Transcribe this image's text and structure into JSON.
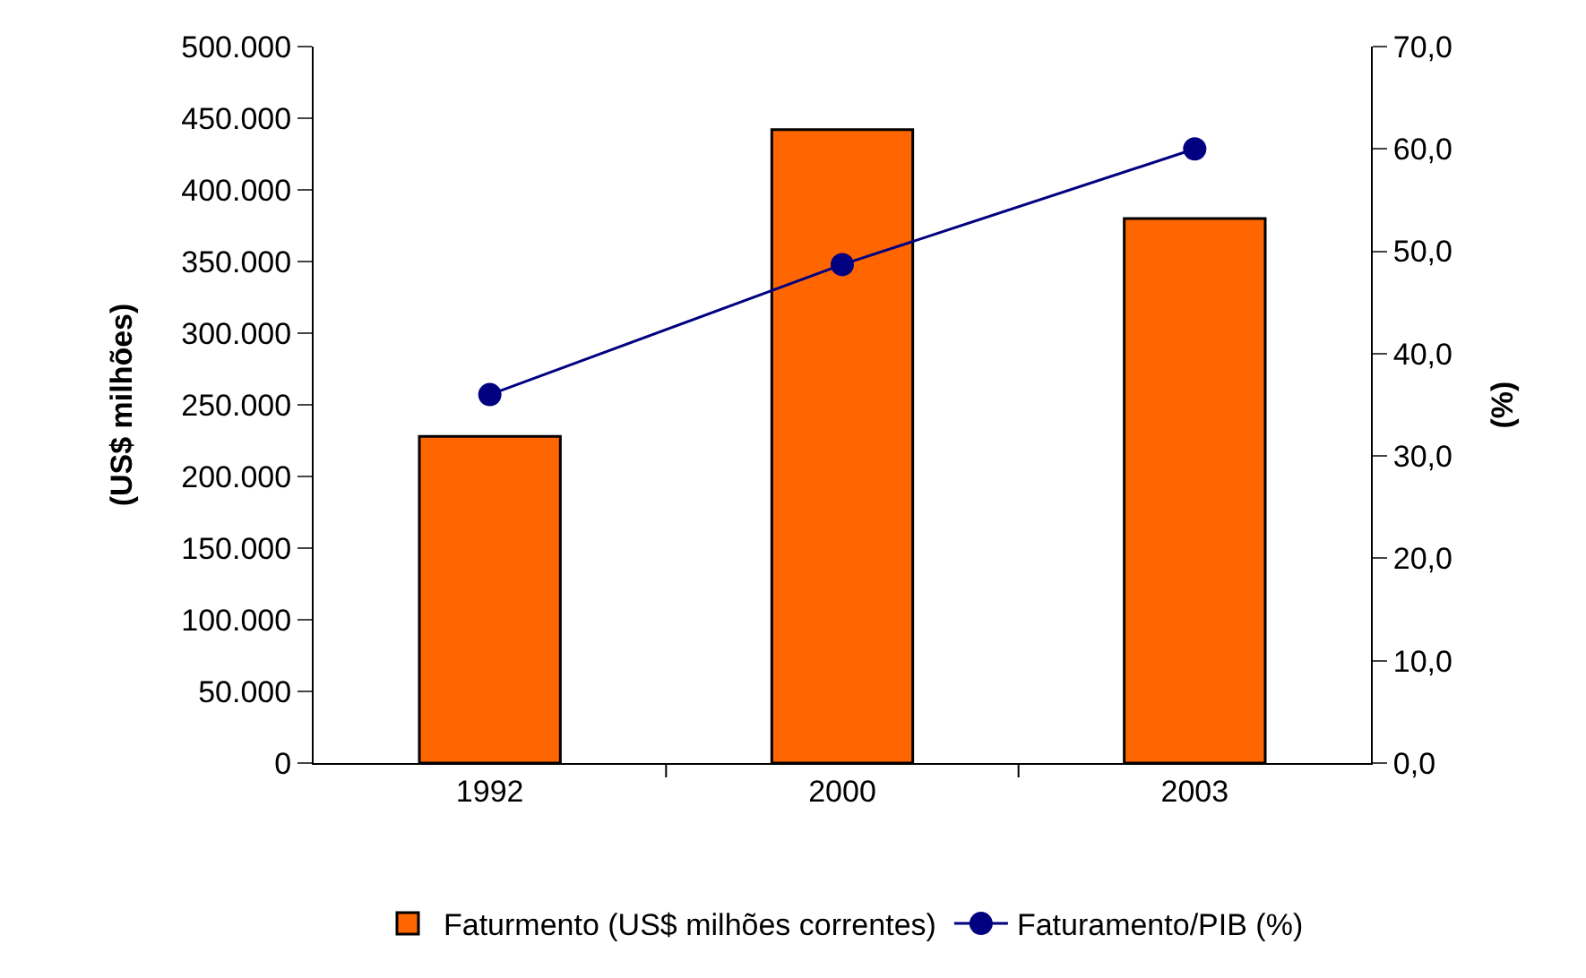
{
  "chart_data": {
    "type": "bar",
    "categories": [
      "1992",
      "2000",
      "2003"
    ],
    "ylabel": "(US$ milhões)",
    "y2label": "(%)",
    "series": [
      {
        "name": "Faturmento (US$ milhões correntes)",
        "color": "#ff6600",
        "values": [
          228000,
          442000,
          380000
        ]
      },
      {
        "name": "Faturamento/PIB (%)",
        "type": "line",
        "axis": "y2",
        "color": "#000080",
        "marker": "circle",
        "values": [
          36.0,
          48.7,
          60.0
        ]
      }
    ],
    "ylim": [
      0,
      500000
    ],
    "yticks": [
      0,
      {
        "value": 50000,
        "label": "50.000"
      },
      {
        "value": 100000,
        "label": "100.000"
      },
      {
        "value": 150000,
        "label": "150.000"
      },
      {
        "value": 200000,
        "label": "200.000"
      },
      {
        "value": 250000,
        "label": "250.000"
      },
      {
        "value": 300000,
        "label": "300.000"
      },
      {
        "value": 350000,
        "label": "350.000"
      },
      {
        "value": 400000,
        "label": "400.000"
      },
      {
        "value": 450000,
        "label": "450.000"
      },
      {
        "value": 500000,
        "label": "500.000"
      }
    ],
    "y2lim": [
      0,
      70
    ],
    "y2ticks": [
      {
        "value": 0,
        "label": "0,0"
      },
      {
        "value": 10,
        "label": "10,0"
      },
      {
        "value": 20,
        "label": "20,0"
      },
      {
        "value": 30,
        "label": "30,0"
      },
      {
        "value": 40,
        "label": "40,0"
      },
      {
        "value": 50,
        "label": "50,0"
      },
      {
        "value": 60,
        "label": "60,0"
      },
      {
        "value": 70,
        "label": "70,0"
      }
    ],
    "grid": false,
    "legend": "bottom"
  }
}
